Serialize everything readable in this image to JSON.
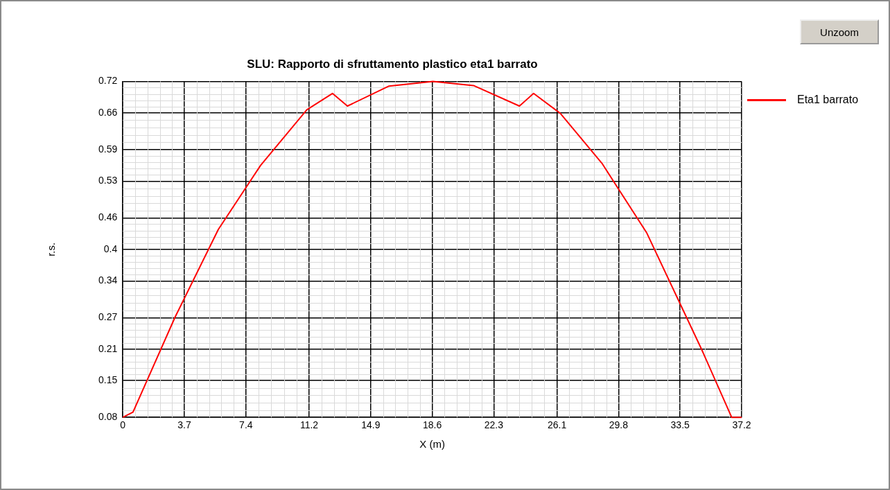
{
  "chart_data": {
    "type": "line",
    "title": "SLU: Rapporto di sfruttamento plastico eta1 barrato",
    "xlabel": "X (m)",
    "ylabel": "r.s.",
    "annotations": [
      "Unzoom"
    ],
    "series": [
      {
        "name": "Eta1 barrato",
        "color": "#ff0000",
        "x": [
          0,
          0.61,
          3.14,
          5.74,
          8.28,
          11.06,
          12.6,
          13.5,
          16.0,
          18.64,
          21.08,
          23.84,
          24.69,
          26.3,
          28.8,
          31.5,
          34.8,
          36.6,
          37.2
        ],
        "values": [
          0.08,
          0.09,
          0.271,
          0.438,
          0.56,
          0.666,
          0.697,
          0.673,
          0.711,
          0.72,
          0.712,
          0.673,
          0.697,
          0.659,
          0.564,
          0.431,
          0.209,
          0.08,
          0.08
        ]
      }
    ],
    "xlim": [
      0,
      37.2
    ],
    "xticks": [
      0,
      3.7,
      7.4,
      11.2,
      14.9,
      18.6,
      22.3,
      26.1,
      29.8,
      33.5,
      37.2
    ],
    "ylim": [
      0.08,
      0.72
    ],
    "yticks": [
      0.08,
      0.15,
      0.21,
      0.27,
      0.34,
      0.4,
      0.46,
      0.53,
      0.59,
      0.66,
      0.72
    ],
    "grid": true,
    "legend": "right",
    "marker": "none",
    "line_style": "solid"
  }
}
